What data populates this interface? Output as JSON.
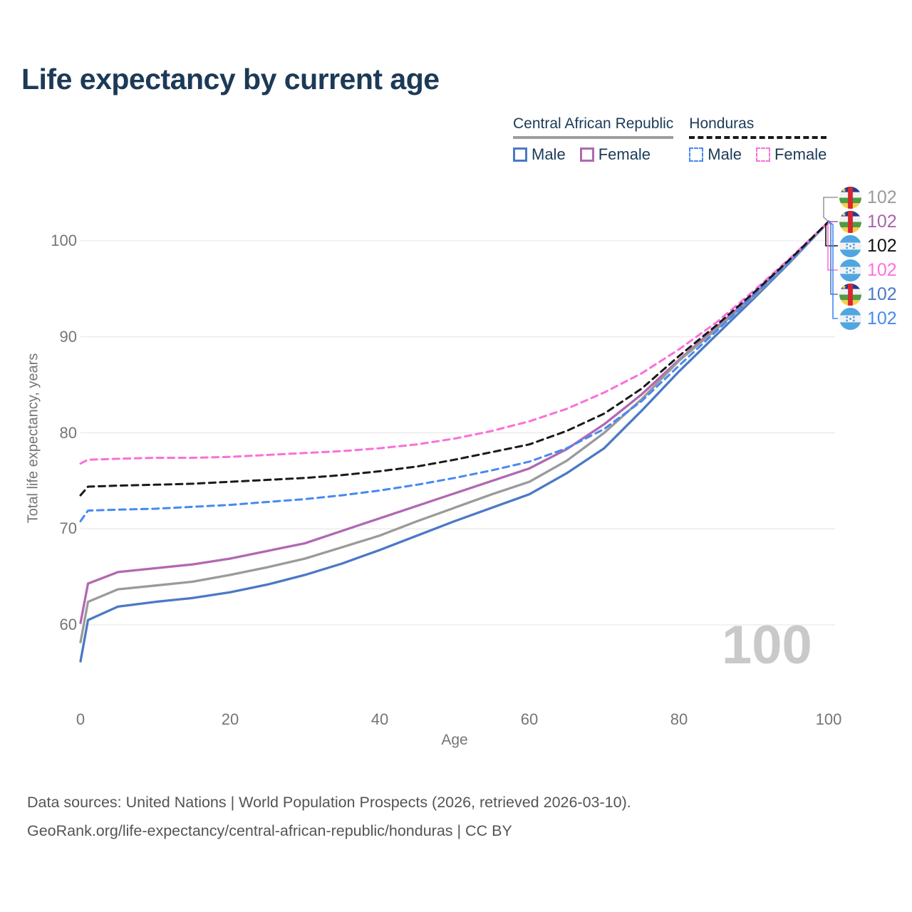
{
  "title": "Life expectancy by current age",
  "legend": {
    "groups": [
      {
        "label": "Central African Republic",
        "line_style": "solid",
        "underline_color": "#9e9e9e",
        "items": [
          {
            "label": "Male",
            "color": "#4b79c4"
          },
          {
            "label": "Female",
            "color": "#b168b1"
          }
        ]
      },
      {
        "label": "Honduras",
        "line_style": "dashed",
        "underline_color": "#1a1a1a",
        "items": [
          {
            "label": "Male",
            "color": "#4689f2"
          },
          {
            "label": "Female",
            "color": "#fa70d8"
          }
        ]
      }
    ]
  },
  "y_axis": {
    "title": "Total life expectancy, years",
    "ticks": [
      60,
      70,
      80,
      90,
      100
    ]
  },
  "x_axis": {
    "title": "Age",
    "ticks": [
      0,
      20,
      40,
      60,
      80,
      100
    ]
  },
  "watermark": "100",
  "right_labels": [
    {
      "flag": "central-african-republic",
      "value": "102",
      "color": "#9a9a9a"
    },
    {
      "flag": "central-african-republic",
      "value": "102",
      "color": "#a965a9"
    },
    {
      "flag": "honduras",
      "value": "102",
      "color": "#111111"
    },
    {
      "flag": "honduras",
      "value": "102",
      "color": "#ff70dd"
    },
    {
      "flag": "central-african-republic",
      "value": "102",
      "color": "#4b79c4"
    },
    {
      "flag": "honduras",
      "value": "102",
      "color": "#4689f2"
    }
  ],
  "source": {
    "line1": "Data sources: United Nations | World Population Prospects (2026, retrieved 2026-03-10).",
    "line2": "GeoRank.org/life-expectancy/central-african-republic/honduras | CC BY"
  },
  "chart_data": {
    "type": "line",
    "title": "Life expectancy by current age",
    "xlabel": "Age",
    "ylabel": "Total life expectancy, years",
    "xlim": [
      0,
      100
    ],
    "ylim": [
      54,
      104
    ],
    "grid": "horizontal-only",
    "legend_position": "top-right",
    "x": [
      0,
      1,
      5,
      10,
      15,
      20,
      25,
      30,
      35,
      40,
      45,
      50,
      55,
      60,
      65,
      70,
      75,
      80,
      85,
      90,
      95,
      100
    ],
    "series": [
      {
        "name": "Central African Republic Male",
        "style": "solid",
        "color": "#4b79c4",
        "values": [
          56.2,
          60.5,
          61.9,
          62.4,
          62.8,
          63.4,
          64.2,
          65.2,
          66.4,
          67.8,
          69.3,
          70.8,
          72.2,
          73.6,
          75.8,
          78.4,
          82.3,
          86.4,
          90.2,
          94.0,
          97.9,
          102
        ]
      },
      {
        "name": "Central African Republic Female",
        "style": "solid",
        "color": "#b168b1",
        "values": [
          60.2,
          64.3,
          65.5,
          65.9,
          66.3,
          66.9,
          67.7,
          68.5,
          69.8,
          71.1,
          72.4,
          73.7,
          75.0,
          76.3,
          78.3,
          80.9,
          84.0,
          87.6,
          91.0,
          94.4,
          98.1,
          102
        ]
      },
      {
        "name": "Central African Republic Total",
        "style": "solid",
        "color": "#9a9a9a",
        "values": [
          58.2,
          62.4,
          63.7,
          64.1,
          64.5,
          65.2,
          66.0,
          66.9,
          68.1,
          69.3,
          70.8,
          72.2,
          73.6,
          74.9,
          77.1,
          80.0,
          83.5,
          87.5,
          90.8,
          94.2,
          98.0,
          102
        ]
      },
      {
        "name": "Honduras Male",
        "style": "dashed",
        "color": "#4689f2",
        "values": [
          70.8,
          71.9,
          72.0,
          72.1,
          72.3,
          72.5,
          72.8,
          73.1,
          73.5,
          74.0,
          74.6,
          75.3,
          76.1,
          77.0,
          78.4,
          80.4,
          83.3,
          87.0,
          90.6,
          94.3,
          98.0,
          102
        ]
      },
      {
        "name": "Honduras Female",
        "style": "dashed",
        "color": "#fa70d8",
        "values": [
          76.8,
          77.2,
          77.3,
          77.4,
          77.4,
          77.5,
          77.7,
          77.9,
          78.1,
          78.4,
          78.8,
          79.4,
          80.2,
          81.2,
          82.5,
          84.2,
          86.2,
          88.7,
          91.5,
          94.8,
          98.3,
          102
        ]
      },
      {
        "name": "Honduras Total",
        "style": "dashed",
        "color": "#1a1a1a",
        "values": [
          73.5,
          74.4,
          74.5,
          74.6,
          74.7,
          74.9,
          75.1,
          75.3,
          75.6,
          76.0,
          76.5,
          77.2,
          78.0,
          78.8,
          80.2,
          82.0,
          84.6,
          88.0,
          91.2,
          94.6,
          98.2,
          102
        ]
      }
    ],
    "end_label_value": 102
  }
}
